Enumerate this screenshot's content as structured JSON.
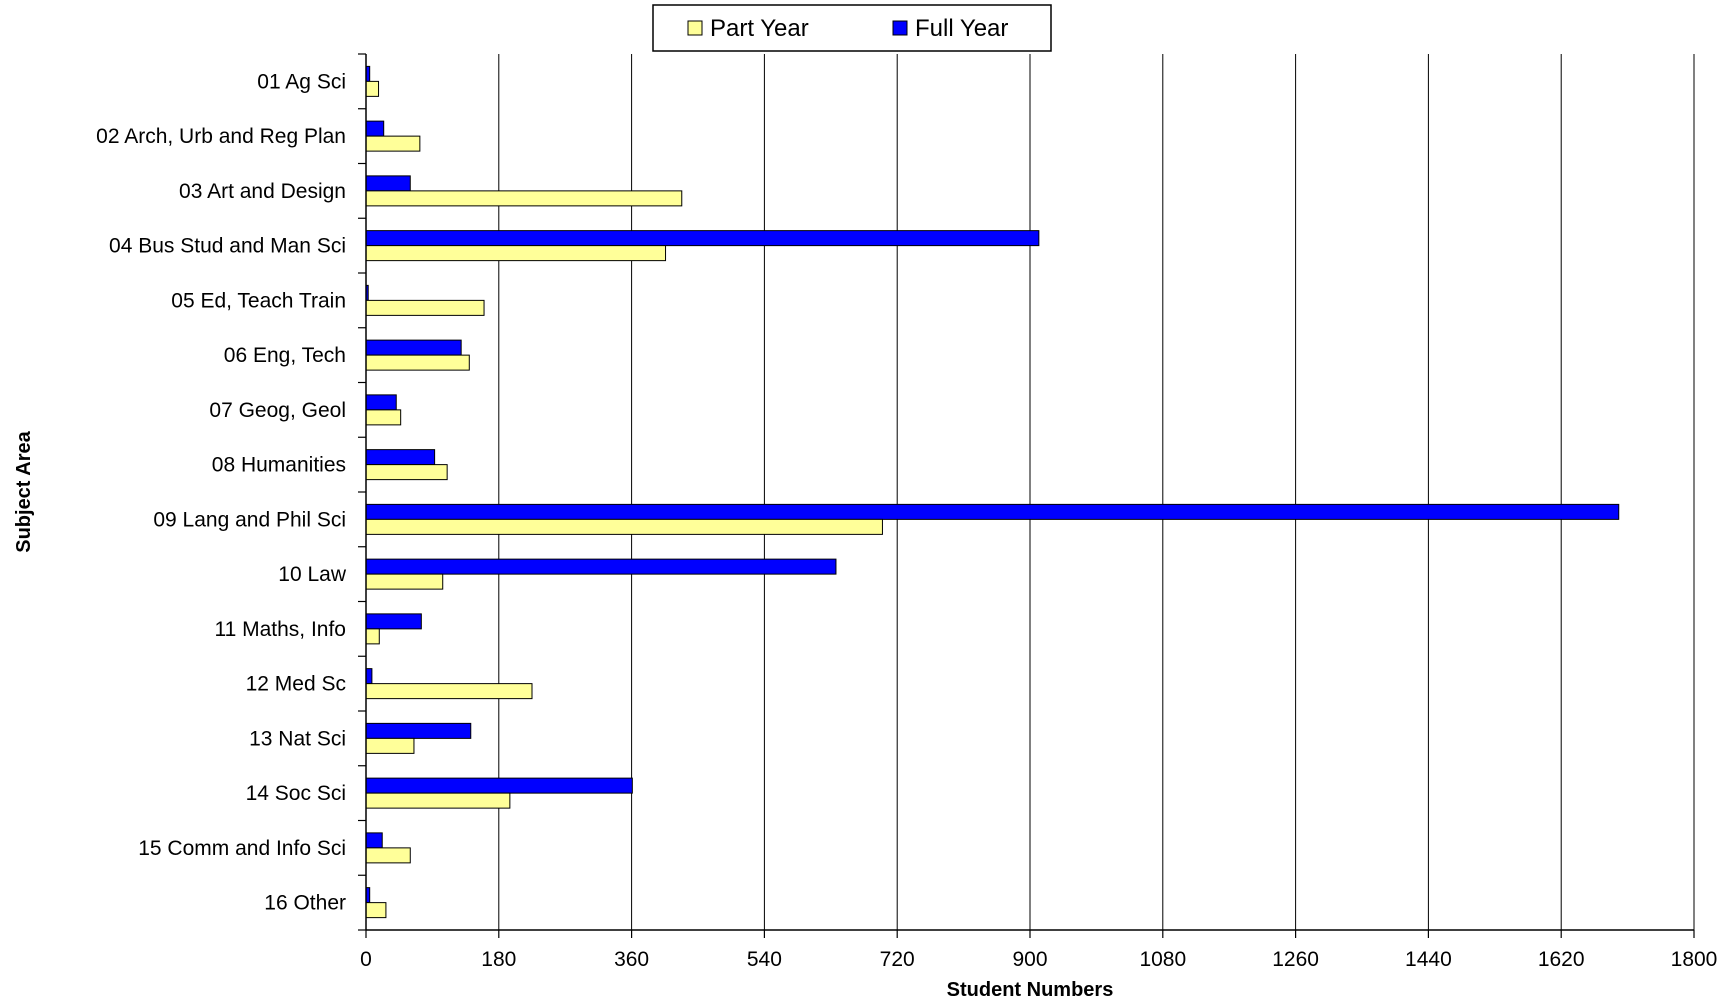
{
  "chart_data": {
    "type": "bar",
    "orientation": "horizontal",
    "xlabel": "Student Numbers",
    "ylabel": "Subject Area",
    "xlim": [
      0,
      1800
    ],
    "xticks": [
      0,
      180,
      360,
      540,
      720,
      900,
      1080,
      1260,
      1440,
      1620,
      1800
    ],
    "grid": "vertical",
    "legend_position": "top-center",
    "categories": [
      "01 Ag Sci",
      "02 Arch, Urb and Reg Plan",
      "03 Art and Design",
      "04 Bus Stud and Man Sci",
      "05 Ed, Teach Train",
      "06 Eng, Tech",
      "07 Geog, Geol",
      "08 Humanities",
      "09 Lang and Phil Sci",
      "10 Law",
      "11 Maths, Info",
      "12 Med Sc",
      "13 Nat Sci",
      "14 Soc Sci",
      "15 Comm and Info Sci",
      "16 Other"
    ],
    "series": [
      {
        "name": "Part Year",
        "color": "#FFFF99",
        "values": [
          17,
          73,
          428,
          406,
          160,
          140,
          47,
          110,
          700,
          104,
          18,
          225,
          65,
          195,
          60,
          27
        ]
      },
      {
        "name": "Full Year",
        "color": "#0000FF",
        "values": [
          5,
          24,
          60,
          912,
          3,
          129,
          41,
          93,
          1698,
          637,
          75,
          8,
          142,
          361,
          22,
          5
        ]
      }
    ]
  }
}
